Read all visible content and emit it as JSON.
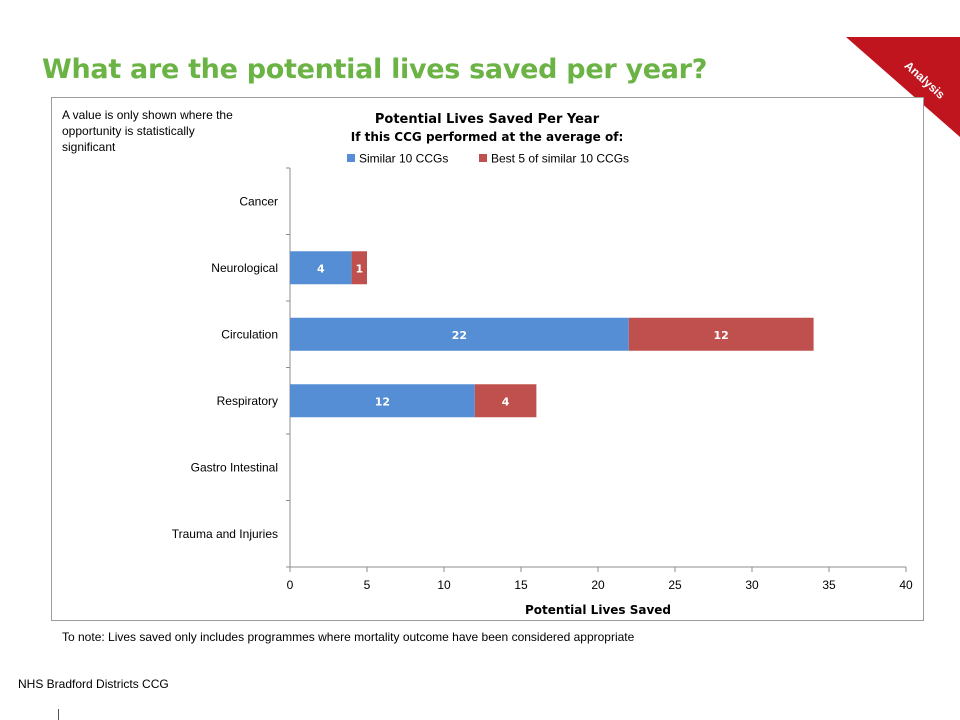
{
  "slide": {
    "title": "What are the potential lives saved per year?",
    "corner_label": "Analysis",
    "corner_color": "#c0141f",
    "title_color": "#6ab344",
    "note": "A value is only shown where the opportunity is statistically significant",
    "footnote": "To note: Lives saved only includes programmes where mortality outcome have been considered appropriate",
    "organisation": "NHS Bradford Districts CCG"
  },
  "chart_data": {
    "type": "bar",
    "orientation": "horizontal",
    "stacked": true,
    "title": "Potential Lives Saved Per Year",
    "subtitle": "If this CCG performed at the average of:",
    "xlabel": "Potential Lives Saved",
    "ylabel": "",
    "xlim": [
      0,
      40
    ],
    "xticks": [
      0,
      5,
      10,
      15,
      20,
      25,
      30,
      35,
      40
    ],
    "legend_position": "top",
    "categories": [
      "Cancer",
      "Neurological",
      "Circulation",
      "Respiratory",
      "Gastro Intestinal",
      "Trauma and Injuries"
    ],
    "series": [
      {
        "name": "Similar 10 CCGs",
        "color": "#558ed5",
        "values": [
          null,
          4,
          22,
          12,
          null,
          null
        ]
      },
      {
        "name": "Best 5 of similar 10 CCGs",
        "color": "#c0504d",
        "values": [
          null,
          1,
          12,
          4,
          null,
          null
        ]
      }
    ],
    "grid": false
  }
}
